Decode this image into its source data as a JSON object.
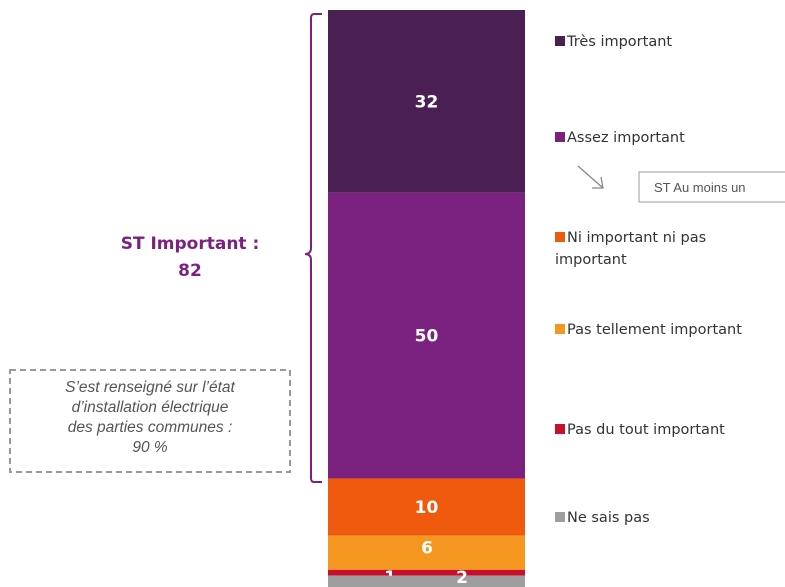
{
  "chart_data": {
    "type": "bar",
    "orientation": "stacked-vertical",
    "categories": [
      ""
    ],
    "series": [
      {
        "name": "Très important",
        "values": [
          32
        ],
        "label": "32",
        "color": "#4a1f54"
      },
      {
        "name": "Assez important",
        "values": [
          50
        ],
        "label": "50",
        "color": "#7b2180"
      },
      {
        "name": "Ni important ni pas important",
        "values": [
          10
        ],
        "label": "10",
        "color": "#ef5a0f"
      },
      {
        "name": "Pas tellement important",
        "values": [
          6
        ],
        "label": "6",
        "color": "#f4961f"
      },
      {
        "name": "Pas du tout important",
        "values": [
          1
        ],
        "label": "1",
        "color": "#c8102e"
      },
      {
        "name": "Ne sais pas",
        "values": [
          2
        ],
        "label": "2",
        "color": "#9e9e9e"
      }
    ],
    "ylim": [
      0,
      101
    ],
    "legend_position": "right",
    "legend_lines": [
      [
        "Très important"
      ],
      [
        "Assez important"
      ],
      [
        "Ni important ni pas",
        "important"
      ],
      [
        "Pas tellement important"
      ],
      [
        "Pas du tout important"
      ],
      [
        "Ne sais pas"
      ]
    ],
    "annotations": {
      "subtotal_label_line1": "ST Important :",
      "subtotal_label_line2": "82",
      "subtotal_color": "#7b2180",
      "note_lines": [
        "S’est renseigné sur l’état",
        "d’installation électrique",
        "des parties communes :",
        "90 %"
      ],
      "callout_text": "ST Au moins un"
    }
  }
}
